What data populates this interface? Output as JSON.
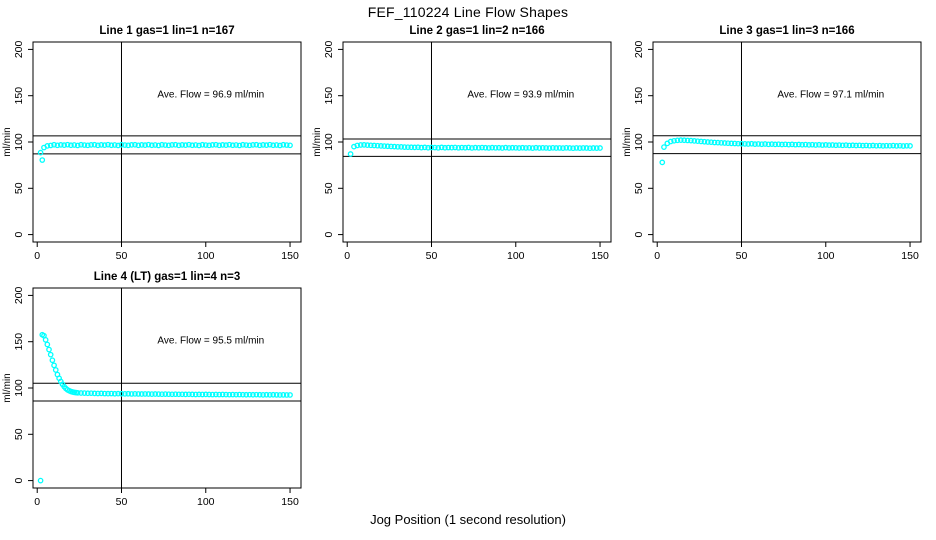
{
  "figure": {
    "main_title": "FEF_110224  Line Flow Shapes",
    "x_axis_label": "Jog Position (1 second resolution)",
    "background_color": "#ffffff",
    "point_color": "#00ffff",
    "line_color": "#000000"
  },
  "chart_data": [
    {
      "type": "scatter",
      "title": "Line 1 gas=1 lin=1 n=167",
      "annotation": "Ave. Flow =  96.9  ml/min",
      "ave_flow": 96.9,
      "ylabel": "ml/min",
      "xlim": [
        -2.5,
        156.5
      ],
      "ylim": [
        -8,
        208
      ],
      "x_ticks": [
        0,
        50,
        100,
        150
      ],
      "y_ticks": [
        0,
        50,
        100,
        150,
        200
      ],
      "vline_x": 50,
      "hlines": [
        87.2,
        106.6
      ],
      "marker": "circle-open",
      "segments": [
        {
          "x0": 3,
          "dx": 1,
          "y": [
            80.5
          ]
        },
        {
          "x0": 2,
          "dx": 2,
          "y": [
            88.5,
            94.0,
            95.8,
            96.3,
            97.0,
            96.4,
            96.9,
            96.6,
            97.1,
            96.5,
            96.8,
            96.3,
            97.0,
            96.7,
            96.4,
            96.9,
            97.0,
            96.4,
            96.9,
            96.6,
            97.1,
            96.5,
            96.8,
            96.3,
            97.0,
            96.7,
            96.4,
            96.9,
            97.0,
            96.4,
            96.9,
            96.6,
            97.1,
            96.5,
            96.8,
            96.3,
            97.0,
            96.7,
            96.4,
            96.9,
            97.0,
            96.4,
            96.9,
            96.6,
            97.1,
            96.5,
            96.8,
            96.3,
            97.0,
            96.7,
            96.4,
            96.9,
            97.0,
            96.4,
            96.9,
            96.6,
            97.1,
            96.5,
            96.8,
            96.3,
            97.0,
            96.7,
            96.4,
            96.9,
            97.0,
            96.4,
            96.9,
            96.6,
            97.1,
            96.5,
            96.8,
            96.3,
            97.0,
            96.7,
            96.4
          ]
        }
      ]
    },
    {
      "type": "scatter",
      "title": "Line 2 gas=1 lin=2 n=166",
      "annotation": "Ave. Flow =  93.9  ml/min",
      "ave_flow": 93.9,
      "ylabel": "ml/min",
      "xlim": [
        -2.5,
        156.5
      ],
      "ylim": [
        -8,
        208
      ],
      "x_ticks": [
        0,
        50,
        100,
        150
      ],
      "y_ticks": [
        0,
        50,
        100,
        150,
        200
      ],
      "vline_x": 50,
      "hlines": [
        84.5,
        103.3
      ],
      "marker": "circle-open",
      "segments": [
        {
          "x0": 2,
          "dx": 2,
          "y": [
            87.0,
            95.0,
            96.3,
            96.8,
            96.9,
            96.6,
            96.4,
            96.2,
            96.0,
            95.8,
            95.6,
            95.4,
            95.2,
            95.0,
            94.8,
            94.7,
            94.5,
            94.4,
            94.3,
            94.2,
            94.3,
            93.9,
            94.2,
            93.8,
            94.1,
            94.0,
            93.7,
            94.2,
            93.8,
            94.0,
            93.9,
            94.1,
            93.7,
            94.0,
            93.8,
            94.1,
            93.6,
            93.9,
            93.7,
            94.0,
            93.8,
            93.6,
            93.9,
            93.7,
            93.8,
            93.5,
            93.9,
            93.6,
            93.8,
            93.7,
            93.5,
            93.8,
            93.6,
            93.7,
            93.4,
            93.8,
            93.5,
            93.7,
            93.6,
            93.4,
            93.7,
            93.5,
            93.6,
            93.4,
            93.7,
            93.5,
            93.3,
            93.6,
            93.4,
            93.6,
            93.5,
            93.3,
            93.5,
            93.4,
            93.5
          ]
        }
      ]
    },
    {
      "type": "scatter",
      "title": "Line 3 gas=1 lin=3 n=166",
      "annotation": "Ave. Flow =  97.1  ml/min",
      "ave_flow": 97.1,
      "ylabel": "ml/min",
      "xlim": [
        -2.5,
        156.5
      ],
      "ylim": [
        -8,
        208
      ],
      "x_ticks": [
        0,
        50,
        100,
        150
      ],
      "y_ticks": [
        0,
        50,
        100,
        150,
        200
      ],
      "vline_x": 50,
      "hlines": [
        87.4,
        106.8
      ],
      "marker": "circle-open",
      "segments": [
        {
          "x0": 3,
          "dx": 1,
          "y": [
            78.0
          ]
        },
        {
          "x0": 4,
          "dx": 2,
          "y": [
            94.5,
            98.5,
            100.5,
            101.3,
            101.8,
            102.0,
            101.9,
            101.7,
            101.5,
            101.2,
            100.9,
            100.6,
            100.3,
            100.0,
            99.8,
            99.5,
            99.3,
            99.1,
            98.9,
            98.7,
            98.5,
            98.4,
            98.2,
            98.1,
            98.0,
            97.8,
            98.1,
            97.7,
            97.9,
            97.6,
            97.8,
            97.5,
            97.7,
            97.4,
            97.6,
            97.3,
            97.5,
            97.2,
            97.4,
            97.1,
            97.3,
            97.0,
            97.2,
            96.9,
            97.1,
            96.8,
            97.0,
            96.7,
            96.9,
            96.6,
            96.8,
            96.5,
            96.7,
            96.4,
            96.6,
            96.3,
            96.5,
            96.2,
            96.4,
            96.1,
            96.3,
            96.0,
            96.2,
            95.9,
            96.1,
            95.8,
            96.0,
            95.9,
            96.1,
            95.8,
            96.0,
            95.7,
            95.9,
            95.8
          ]
        }
      ]
    },
    {
      "type": "scatter",
      "title": "Line 4 (LT) gas=1 lin=4 n=3",
      "annotation": "Ave. Flow =  95.5  ml/min",
      "ave_flow": 95.5,
      "ylabel": "ml/min",
      "xlim": [
        -2.5,
        156.5
      ],
      "ylim": [
        -8,
        208
      ],
      "x_ticks": [
        0,
        50,
        100,
        150
      ],
      "y_ticks": [
        0,
        50,
        100,
        150,
        200
      ],
      "vline_x": 50,
      "hlines": [
        86.0,
        105.1
      ],
      "marker": "circle-open",
      "segments": [
        {
          "x0": 2,
          "dx": 1,
          "y": [
            0.0
          ]
        },
        {
          "x0": 3,
          "dx": 1,
          "y": [
            157.5,
            156.5,
            152.0,
            147.0,
            141.5,
            136.0,
            130.0,
            124.5,
            119.5,
            114.5,
            110.5,
            107.0,
            104.0,
            101.5,
            99.5,
            98.0,
            97.0,
            96.2,
            95.7,
            95.3,
            95.0,
            94.8
          ]
        },
        {
          "x0": 26,
          "dx": 2,
          "y": [
            94.6,
            94.5,
            94.3,
            94.4,
            94.2,
            94.1,
            94.2,
            94.0,
            93.9,
            94.0,
            93.8,
            93.9,
            93.8,
            93.7,
            93.8,
            93.6,
            93.7,
            93.6,
            93.5,
            93.6,
            93.5,
            93.4,
            93.5,
            93.4,
            93.3,
            93.4,
            93.3,
            93.2,
            93.3,
            93.2,
            93.2,
            93.1,
            93.2,
            93.1,
            93.0,
            93.1,
            93.0,
            93.1,
            93.0,
            92.9,
            93.0,
            92.9,
            93.0,
            92.9,
            92.8,
            92.9,
            92.8,
            92.9,
            92.8,
            92.7,
            92.8,
            92.7,
            92.8,
            92.7,
            92.6,
            92.7,
            92.6,
            92.7,
            92.6,
            92.5,
            92.6,
            92.5,
            92.5
          ]
        }
      ]
    }
  ]
}
